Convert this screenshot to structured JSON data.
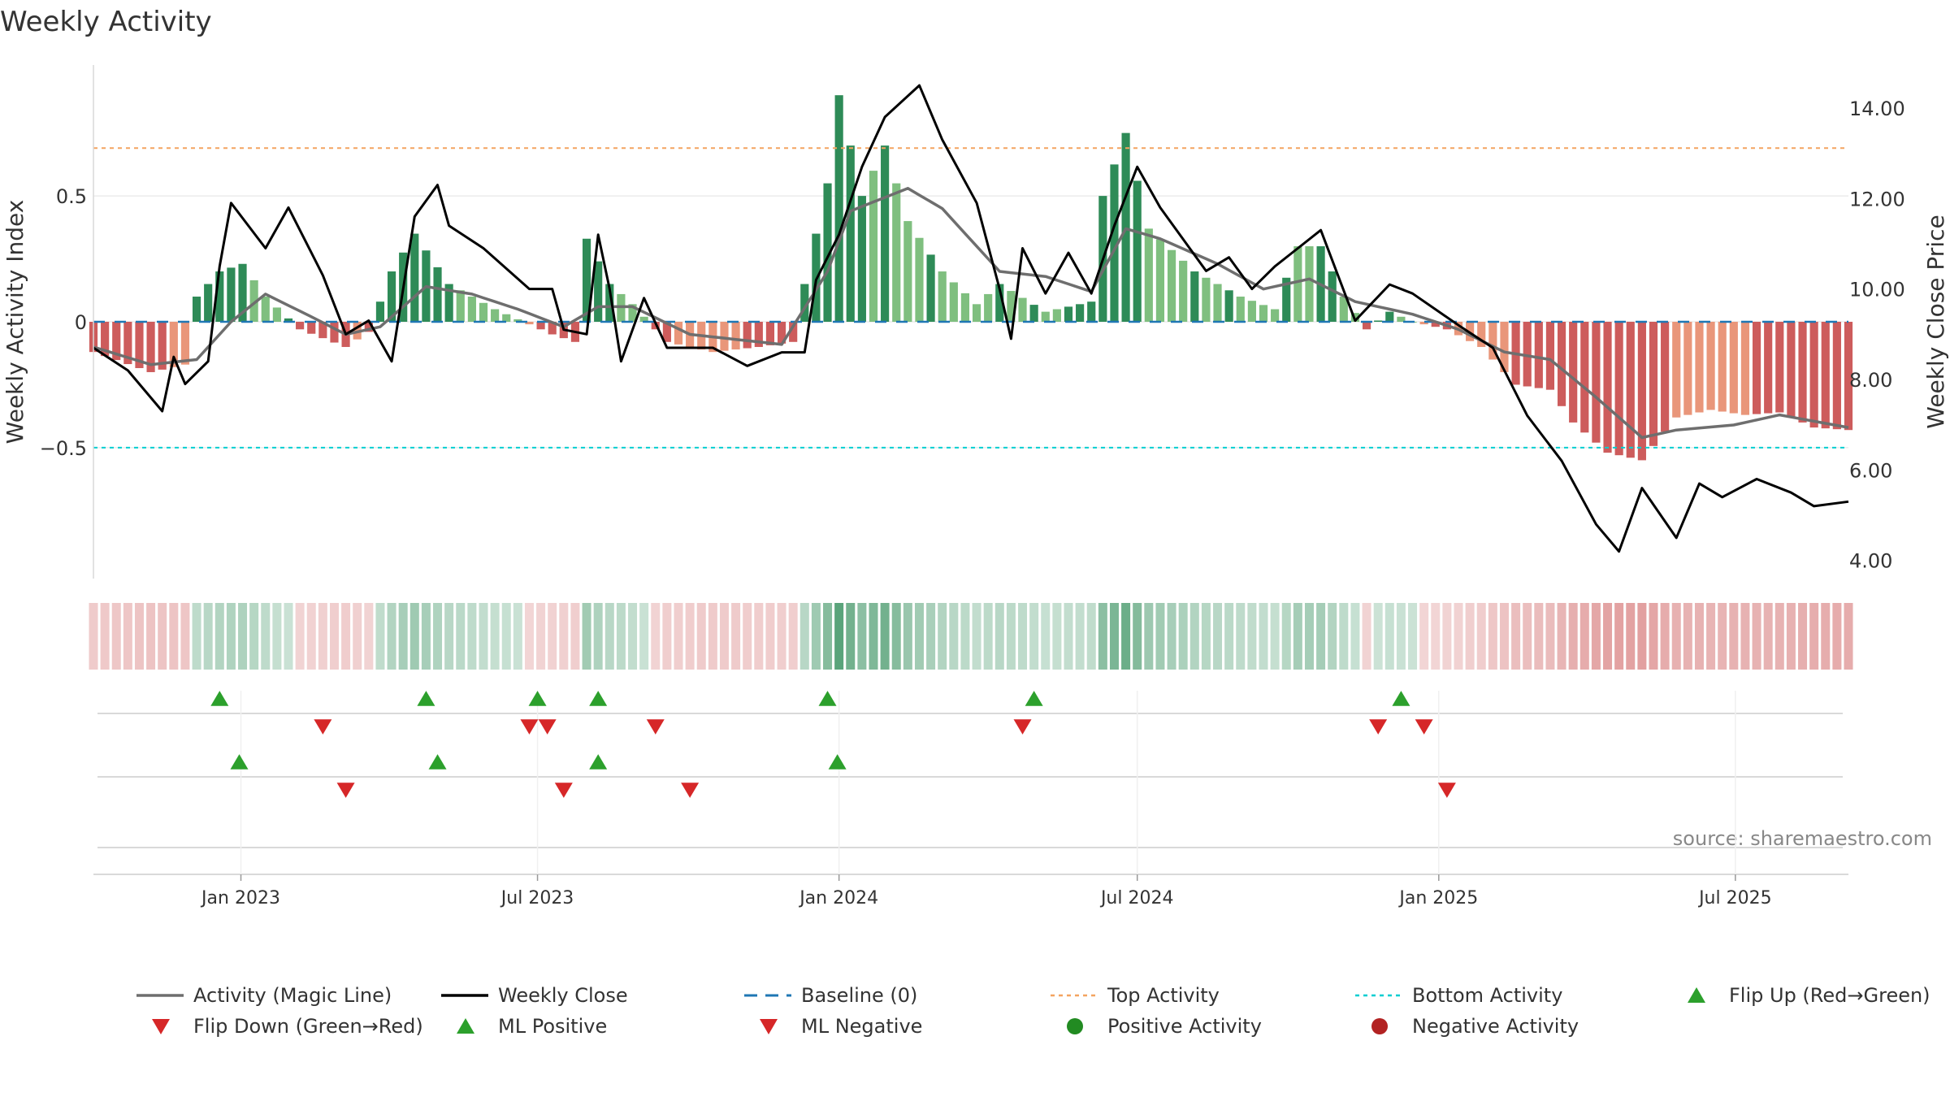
{
  "chart_data": {
    "type": "bar",
    "title": "Weekly Activity",
    "ylabel_left": "Weekly Activity Index",
    "ylabel_right": "Weekly Close Price",
    "source": "source: sharemaestro.com",
    "x_range": [
      "2022-10-03",
      "2025-09-08"
    ],
    "ylim_left": [
      -1.02,
      1.02
    ],
    "ylim_right": [
      3.6,
      14.95
    ],
    "yticks_left": [
      {
        "value": 0.5,
        "label": "0.5"
      },
      {
        "value": 0,
        "label": "0"
      },
      {
        "value": -0.5,
        "label": "−0.5"
      }
    ],
    "yticks_right": [
      {
        "value": 14,
        "label": "14.00"
      },
      {
        "value": 12,
        "label": "12.00"
      },
      {
        "value": 10,
        "label": "10.00"
      },
      {
        "value": 8,
        "label": "8.00"
      },
      {
        "value": 6,
        "label": "6.00"
      },
      {
        "value": 4,
        "label": "4.00"
      }
    ],
    "xticks": [
      {
        "date": "2023-01-01",
        "label": "Jan 2023"
      },
      {
        "date": "2023-07-01",
        "label": "Jul 2023"
      },
      {
        "date": "2024-01-01",
        "label": "Jan 2024"
      },
      {
        "date": "2024-07-01",
        "label": "Jul 2024"
      },
      {
        "date": "2025-01-01",
        "label": "Jan 2025"
      },
      {
        "date": "2025-07-01",
        "label": "Jul 2025"
      }
    ],
    "top_activity": 0.69,
    "bottom_activity": -0.5,
    "grid": true,
    "colors": {
      "pos_strong": "#2e8b57",
      "pos_weak": "#7fbf7f",
      "neg_strong": "#cd5c5c",
      "neg_weak": "#e9967a",
      "magic_line": "#6e6e6e",
      "close_line": "#000000",
      "baseline": "#1f77b4",
      "top_line": "#f4a460",
      "bottom_line": "#00ced1",
      "flip_up": "#2ca02c",
      "flip_down": "#d62728",
      "pos_dot": "#228b22",
      "neg_dot": "#b22222"
    },
    "activity_anchors": [
      [
        "2022-10-03",
        -0.12
      ],
      [
        "2022-11-07",
        -0.2
      ],
      [
        "2022-11-28",
        -0.17
      ],
      [
        "2022-12-05",
        0.1
      ],
      [
        "2022-12-19",
        0.2
      ],
      [
        "2023-01-02",
        0.23
      ],
      [
        "2023-01-16",
        0.1
      ],
      [
        "2023-02-06",
        -0.03
      ],
      [
        "2023-03-06",
        -0.1
      ],
      [
        "2023-03-20",
        -0.04
      ],
      [
        "2023-04-03",
        0.2
      ],
      [
        "2023-04-17",
        0.35
      ],
      [
        "2023-05-08",
        0.15
      ],
      [
        "2023-06-05",
        0.05
      ],
      [
        "2023-06-26",
        -0.01
      ],
      [
        "2023-07-10",
        -0.05
      ],
      [
        "2023-07-24",
        -0.08
      ],
      [
        "2023-07-31",
        0.33
      ],
      [
        "2023-08-14",
        0.15
      ],
      [
        "2023-08-28",
        0.07
      ],
      [
        "2023-09-18",
        -0.08
      ],
      [
        "2023-10-16",
        -0.12
      ],
      [
        "2023-11-13",
        -0.1
      ],
      [
        "2023-12-04",
        -0.08
      ],
      [
        "2023-12-11",
        0.15
      ],
      [
        "2023-12-25",
        0.55
      ],
      [
        "2024-01-01",
        0.9
      ],
      [
        "2024-01-15",
        0.5
      ],
      [
        "2024-01-29",
        0.7
      ],
      [
        "2024-02-12",
        0.4
      ],
      [
        "2024-03-04",
        0.2
      ],
      [
        "2024-03-25",
        0.07
      ],
      [
        "2024-04-08",
        0.15
      ],
      [
        "2024-05-06",
        0.04
      ],
      [
        "2024-06-03",
        0.08
      ],
      [
        "2024-06-10",
        0.5
      ],
      [
        "2024-06-24",
        0.75
      ],
      [
        "2024-07-08",
        0.37
      ],
      [
        "2024-08-05",
        0.2
      ],
      [
        "2024-09-02",
        0.1
      ],
      [
        "2024-09-23",
        0.05
      ],
      [
        "2024-10-07",
        0.3
      ],
      [
        "2024-10-21",
        0.3
      ],
      [
        "2024-11-04",
        0.1
      ],
      [
        "2024-11-18",
        -0.03
      ],
      [
        "2024-12-02",
        0.04
      ],
      [
        "2024-12-16",
        0.0
      ],
      [
        "2025-01-06",
        -0.03
      ],
      [
        "2025-01-27",
        -0.1
      ],
      [
        "2025-02-17",
        -0.25
      ],
      [
        "2025-03-10",
        -0.27
      ],
      [
        "2025-03-24",
        -0.4
      ],
      [
        "2025-04-14",
        -0.52
      ],
      [
        "2025-05-05",
        -0.55
      ],
      [
        "2025-05-26",
        -0.38
      ],
      [
        "2025-06-16",
        -0.35
      ],
      [
        "2025-07-07",
        -0.37
      ],
      [
        "2025-07-28",
        -0.36
      ],
      [
        "2025-08-18",
        -0.42
      ],
      [
        "2025-09-08",
        -0.43
      ]
    ],
    "magic_anchors": [
      [
        "2022-10-03",
        -0.1
      ],
      [
        "2022-11-07",
        -0.17
      ],
      [
        "2022-12-05",
        -0.15
      ],
      [
        "2022-12-26",
        0.0
      ],
      [
        "2023-01-16",
        0.11
      ],
      [
        "2023-02-13",
        0.02
      ],
      [
        "2023-03-06",
        -0.05
      ],
      [
        "2023-03-27",
        -0.02
      ],
      [
        "2023-04-24",
        0.14
      ],
      [
        "2023-05-22",
        0.11
      ],
      [
        "2023-06-19",
        0.05
      ],
      [
        "2023-07-17",
        -0.02
      ],
      [
        "2023-08-07",
        0.06
      ],
      [
        "2023-08-28",
        0.06
      ],
      [
        "2023-10-02",
        -0.05
      ],
      [
        "2023-11-27",
        -0.09
      ],
      [
        "2023-12-25",
        0.2
      ],
      [
        "2024-01-08",
        0.44
      ],
      [
        "2024-02-12",
        0.53
      ],
      [
        "2024-03-04",
        0.45
      ],
      [
        "2024-04-08",
        0.2
      ],
      [
        "2024-05-06",
        0.18
      ],
      [
        "2024-06-03",
        0.12
      ],
      [
        "2024-06-24",
        0.37
      ],
      [
        "2024-07-15",
        0.33
      ],
      [
        "2024-08-19",
        0.23
      ],
      [
        "2024-09-16",
        0.13
      ],
      [
        "2024-10-14",
        0.17
      ],
      [
        "2024-11-11",
        0.08
      ],
      [
        "2024-12-16",
        0.03
      ],
      [
        "2025-01-13",
        -0.03
      ],
      [
        "2025-02-10",
        -0.12
      ],
      [
        "2025-03-10",
        -0.15
      ],
      [
        "2025-04-07",
        -0.3
      ],
      [
        "2025-05-05",
        -0.46
      ],
      [
        "2025-05-26",
        -0.43
      ],
      [
        "2025-06-30",
        -0.41
      ],
      [
        "2025-07-28",
        -0.37
      ],
      [
        "2025-09-08",
        -0.42
      ]
    ],
    "close_anchors": [
      [
        "2022-10-03",
        8.7
      ],
      [
        "2022-10-24",
        8.2
      ],
      [
        "2022-11-14",
        7.3
      ],
      [
        "2022-11-21",
        8.5
      ],
      [
        "2022-11-28",
        7.9
      ],
      [
        "2022-12-12",
        8.4
      ],
      [
        "2022-12-19",
        10.5
      ],
      [
        "2022-12-26",
        11.9
      ],
      [
        "2023-01-16",
        10.9
      ],
      [
        "2023-01-30",
        11.8
      ],
      [
        "2023-02-20",
        10.3
      ],
      [
        "2023-03-06",
        9.0
      ],
      [
        "2023-03-20",
        9.3
      ],
      [
        "2023-04-03",
        8.4
      ],
      [
        "2023-04-17",
        11.6
      ],
      [
        "2023-05-01",
        12.3
      ],
      [
        "2023-05-08",
        11.4
      ],
      [
        "2023-05-29",
        10.9
      ],
      [
        "2023-06-26",
        10.0
      ],
      [
        "2023-07-10",
        10.0
      ],
      [
        "2023-07-17",
        9.1
      ],
      [
        "2023-07-31",
        9.0
      ],
      [
        "2023-08-07",
        11.2
      ],
      [
        "2023-08-14",
        10.0
      ],
      [
        "2023-08-21",
        8.4
      ],
      [
        "2023-09-04",
        9.8
      ],
      [
        "2023-09-18",
        8.7
      ],
      [
        "2023-10-16",
        8.7
      ],
      [
        "2023-11-06",
        8.3
      ],
      [
        "2023-11-27",
        8.6
      ],
      [
        "2023-12-11",
        8.6
      ],
      [
        "2023-12-18",
        10.2
      ],
      [
        "2024-01-01",
        11.2
      ],
      [
        "2024-01-15",
        12.7
      ],
      [
        "2024-01-29",
        13.8
      ],
      [
        "2024-02-19",
        14.5
      ],
      [
        "2024-03-04",
        13.3
      ],
      [
        "2024-03-25",
        11.9
      ],
      [
        "2024-04-08",
        10.0
      ],
      [
        "2024-04-15",
        8.9
      ],
      [
        "2024-04-22",
        10.9
      ],
      [
        "2024-05-06",
        9.9
      ],
      [
        "2024-05-20",
        10.8
      ],
      [
        "2024-06-03",
        9.9
      ],
      [
        "2024-06-17",
        11.4
      ],
      [
        "2024-07-01",
        12.7
      ],
      [
        "2024-07-15",
        11.8
      ],
      [
        "2024-08-12",
        10.4
      ],
      [
        "2024-08-26",
        10.7
      ],
      [
        "2024-09-09",
        10.0
      ],
      [
        "2024-09-23",
        10.5
      ],
      [
        "2024-10-07",
        10.9
      ],
      [
        "2024-10-21",
        11.3
      ],
      [
        "2024-11-11",
        9.3
      ],
      [
        "2024-12-02",
        10.1
      ],
      [
        "2024-12-16",
        9.9
      ],
      [
        "2025-01-13",
        9.2
      ],
      [
        "2025-02-03",
        8.7
      ],
      [
        "2025-02-24",
        7.2
      ],
      [
        "2025-03-17",
        6.2
      ],
      [
        "2025-04-07",
        4.8
      ],
      [
        "2025-04-21",
        4.2
      ],
      [
        "2025-05-05",
        5.6
      ],
      [
        "2025-05-26",
        4.5
      ],
      [
        "2025-06-09",
        5.7
      ],
      [
        "2025-06-23",
        5.4
      ],
      [
        "2025-07-14",
        5.8
      ],
      [
        "2025-08-04",
        5.5
      ],
      [
        "2025-08-18",
        5.2
      ],
      [
        "2025-09-08",
        5.3
      ]
    ],
    "weak_weeks": [
      "2022-11-21",
      "2022-11-28",
      "2023-01-09",
      "2023-01-16",
      "2023-01-23",
      "2023-03-13",
      "2023-05-15",
      "2023-05-22",
      "2023-05-29",
      "2023-06-05",
      "2023-06-12",
      "2023-06-19",
      "2023-06-26",
      "2023-08-21",
      "2023-08-28",
      "2023-09-04",
      "2023-09-25",
      "2023-10-02",
      "2023-10-09",
      "2023-10-16",
      "2023-10-23",
      "2023-10-30",
      "2024-01-22",
      "2024-02-05",
      "2024-02-12",
      "2024-02-19",
      "2024-03-04",
      "2024-03-11",
      "2024-03-18",
      "2024-03-25",
      "2024-04-01",
      "2024-04-15",
      "2024-04-22",
      "2024-05-06",
      "2024-05-13",
      "2024-07-08",
      "2024-07-15",
      "2024-07-22",
      "2024-07-29",
      "2024-08-12",
      "2024-08-19",
      "2024-09-02",
      "2024-09-09",
      "2024-09-16",
      "2024-09-23",
      "2024-10-07",
      "2024-10-14",
      "2024-11-04",
      "2024-11-11",
      "2024-12-09",
      "2024-12-16",
      "2024-12-23",
      "2025-01-13",
      "2025-01-20",
      "2025-01-27",
      "2025-02-03",
      "2025-02-10",
      "2025-05-26",
      "2025-06-02",
      "2025-06-09",
      "2025-06-16",
      "2025-06-23",
      "2025-06-30",
      "2025-07-07"
    ],
    "flip_up_row1": [
      "2022-12-19",
      "2023-04-24",
      "2023-07-01",
      "2023-08-07",
      "2023-12-25",
      "2024-04-29",
      "2024-12-09"
    ],
    "flip_down_row1": [
      "2023-02-20",
      "2023-06-26",
      "2023-07-07",
      "2023-09-11",
      "2024-04-22",
      "2024-11-25",
      "2024-12-23"
    ],
    "ml_positive_row2": [
      "2022-12-31",
      "2023-05-01",
      "2023-08-07",
      "2023-12-31"
    ],
    "ml_negative_row2": [
      "2023-03-06",
      "2023-07-17",
      "2023-10-02",
      "2025-01-06"
    ],
    "legend": [
      {
        "label": "Activity (Magic Line)",
        "symbol": "line",
        "color": "#6e6e6e"
      },
      {
        "label": "Weekly Close",
        "symbol": "line",
        "color": "#000000"
      },
      {
        "label": "Baseline (0)",
        "symbol": "dash",
        "color": "#1f77b4"
      },
      {
        "label": "Top Activity",
        "symbol": "dot-line",
        "color": "#f4a460"
      },
      {
        "label": "Bottom Activity",
        "symbol": "dot-line",
        "color": "#00ced1"
      },
      {
        "label": "Flip Up (Red→Green)",
        "symbol": "tri-up",
        "color": "#2ca02c"
      },
      {
        "label": "Flip Down (Green→Red)",
        "symbol": "tri-down",
        "color": "#d62728"
      },
      {
        "label": "ML Positive",
        "symbol": "tri-up",
        "color": "#2ca02c"
      },
      {
        "label": "ML Negative",
        "symbol": "tri-down",
        "color": "#d62728"
      },
      {
        "label": "Positive Activity",
        "symbol": "circle",
        "color": "#228b22"
      },
      {
        "label": "Negative Activity",
        "symbol": "circle",
        "color": "#b22222"
      }
    ]
  }
}
